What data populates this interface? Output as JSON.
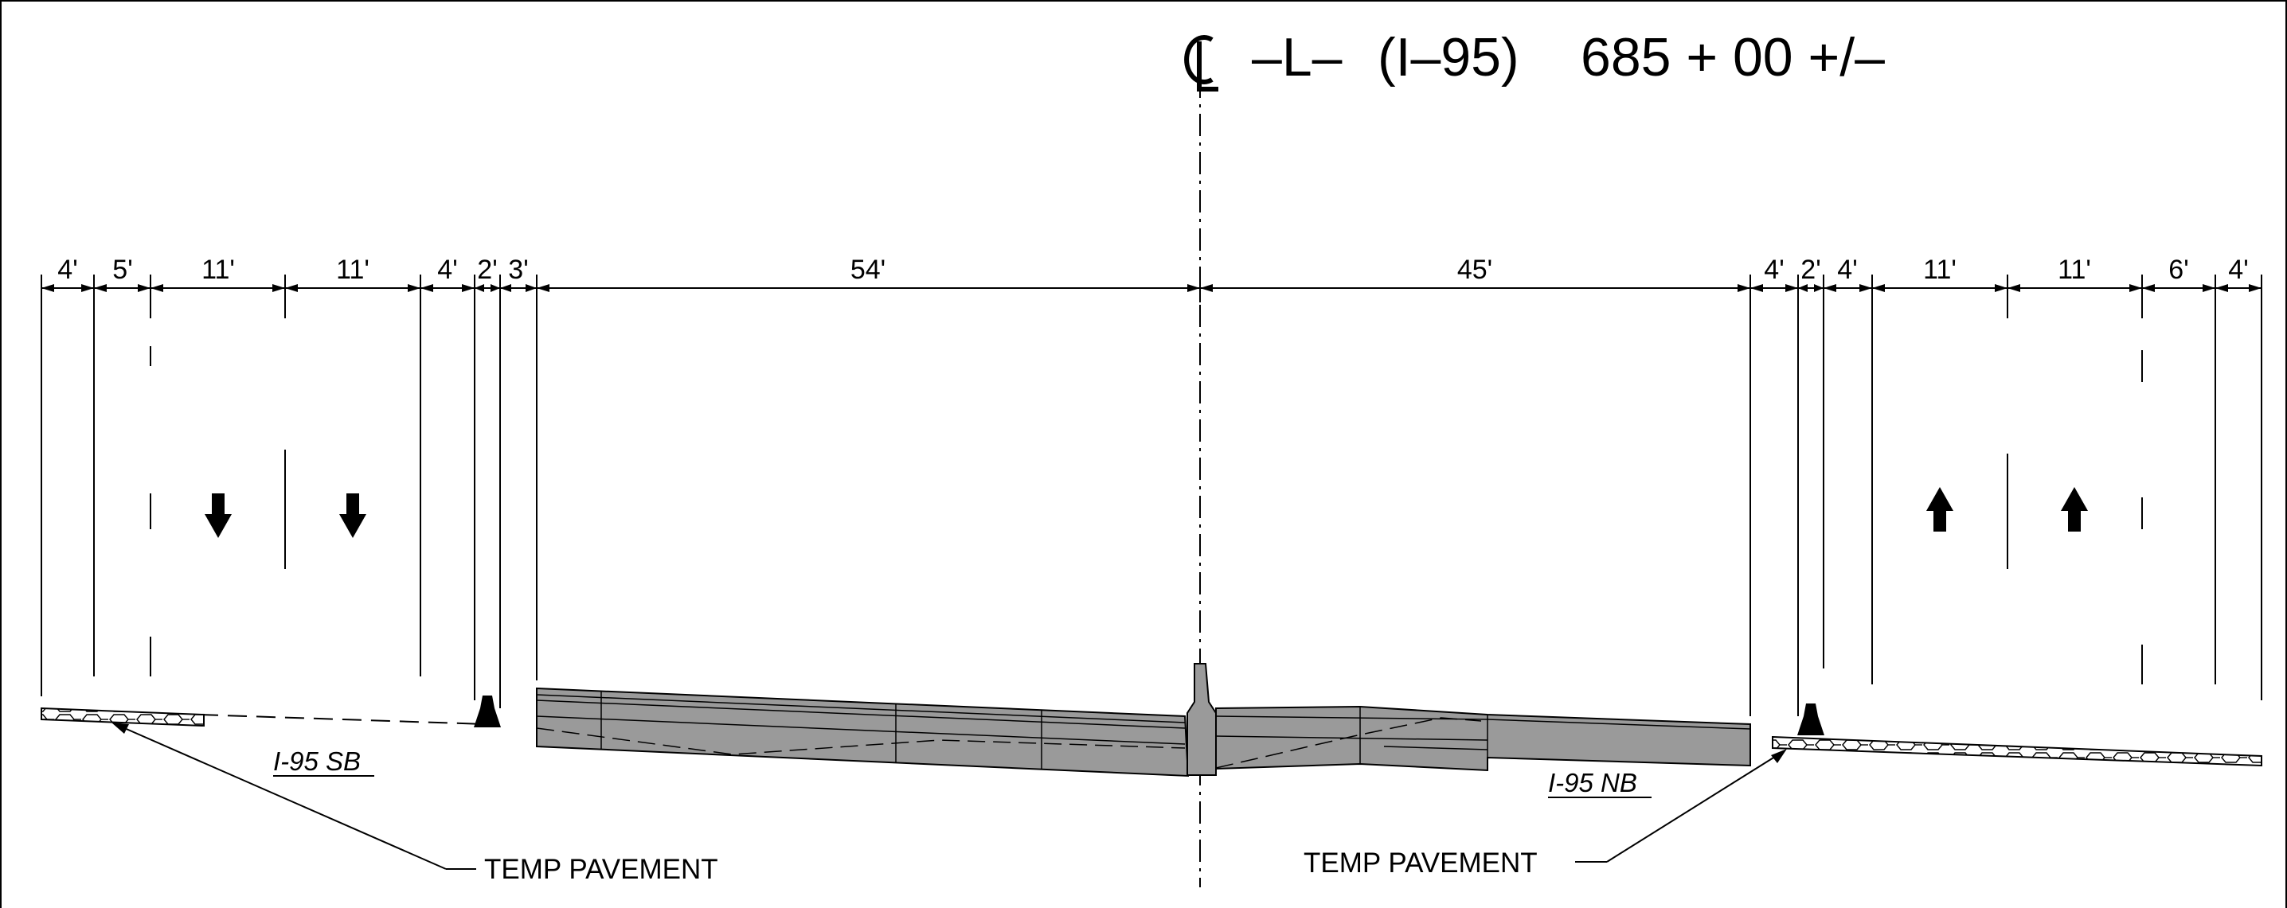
{
  "title": {
    "centerline_symbol": "CL",
    "alignment": "–L–",
    "route": "(I–95)",
    "station": "685 + 00 +/–"
  },
  "dimensions": {
    "left": [
      "4'",
      "5'",
      "11'",
      "11'",
      "4'",
      "2'",
      "3'"
    ],
    "center_left": "54'",
    "center_right": "45'",
    "right": [
      "4'",
      "2'",
      "4'",
      "11'",
      "11'",
      "6'",
      "4'"
    ]
  },
  "roadway_labels": {
    "southbound": "I-95 SB",
    "northbound": "I-95 NB"
  },
  "callouts": {
    "left": "TEMP PAVEMENT",
    "right": "TEMP PAVEMENT"
  },
  "traffic_arrows": {
    "southbound": "down-arrow-icon",
    "northbound": "up-arrow-icon"
  }
}
